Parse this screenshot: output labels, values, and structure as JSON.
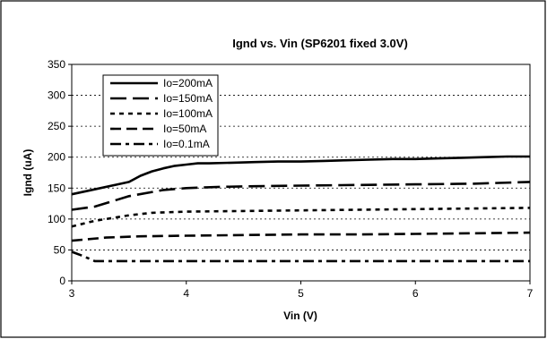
{
  "chart_data": {
    "type": "line",
    "title": "Ignd vs. Vin (SP6201 fixed 3.0V)",
    "xlabel": "Vin (V)",
    "ylabel": "Ignd (uA)",
    "xlim": [
      3,
      7
    ],
    "ylim": [
      0,
      350
    ],
    "x_ticks": [
      3,
      4,
      5,
      6,
      7
    ],
    "y_ticks": [
      0,
      50,
      100,
      150,
      200,
      250,
      300,
      350
    ],
    "grid": "horizontal dotted",
    "legend_position": "top-left",
    "series": [
      {
        "name": "Io=200mA",
        "style": "solid",
        "x": [
          3.0,
          3.2,
          3.5,
          3.6,
          3.7,
          3.8,
          3.9,
          4.0,
          4.1,
          4.2,
          4.4,
          4.6,
          4.8,
          5.0,
          5.2,
          5.4,
          5.6,
          5.8,
          6.0,
          6.2,
          6.4,
          6.6,
          6.8,
          7.0
        ],
        "values": [
          140,
          148,
          160,
          170,
          177,
          182,
          186,
          188,
          190,
          190,
          191,
          192,
          193,
          193,
          194,
          195,
          196,
          197,
          197,
          198,
          199,
          200,
          201,
          201
        ]
      },
      {
        "name": "Io=150mA",
        "style": "long-dash",
        "x": [
          3.0,
          3.2,
          3.5,
          3.8,
          4.0,
          4.3,
          4.6,
          5.0,
          5.5,
          6.0,
          6.5,
          7.0
        ],
        "values": [
          115,
          120,
          137,
          147,
          150,
          152,
          153,
          154,
          155,
          156,
          157,
          160
        ]
      },
      {
        "name": "Io=100mA",
        "style": "short-dash",
        "x": [
          3.0,
          3.2,
          3.5,
          3.7,
          4.0,
          4.5,
          5.0,
          5.5,
          6.0,
          6.5,
          7.0
        ],
        "values": [
          88,
          97,
          106,
          110,
          112,
          113,
          114,
          115,
          116,
          117,
          118
        ]
      },
      {
        "name": "Io=50mA",
        "style": "dash",
        "x": [
          3.0,
          3.3,
          3.6,
          4.0,
          4.5,
          5.0,
          5.5,
          6.0,
          6.5,
          7.0
        ],
        "values": [
          65,
          70,
          72,
          73,
          74,
          75,
          75,
          76,
          77,
          78
        ]
      },
      {
        "name": "Io=0.1mA",
        "style": "dash-dot",
        "x": [
          3.0,
          3.1,
          3.2,
          3.5,
          4.0,
          4.5,
          5.0,
          5.5,
          6.0,
          6.5,
          7.0
        ],
        "values": [
          47,
          40,
          32,
          32,
          32,
          32,
          32,
          32,
          32,
          32,
          32
        ]
      }
    ]
  }
}
